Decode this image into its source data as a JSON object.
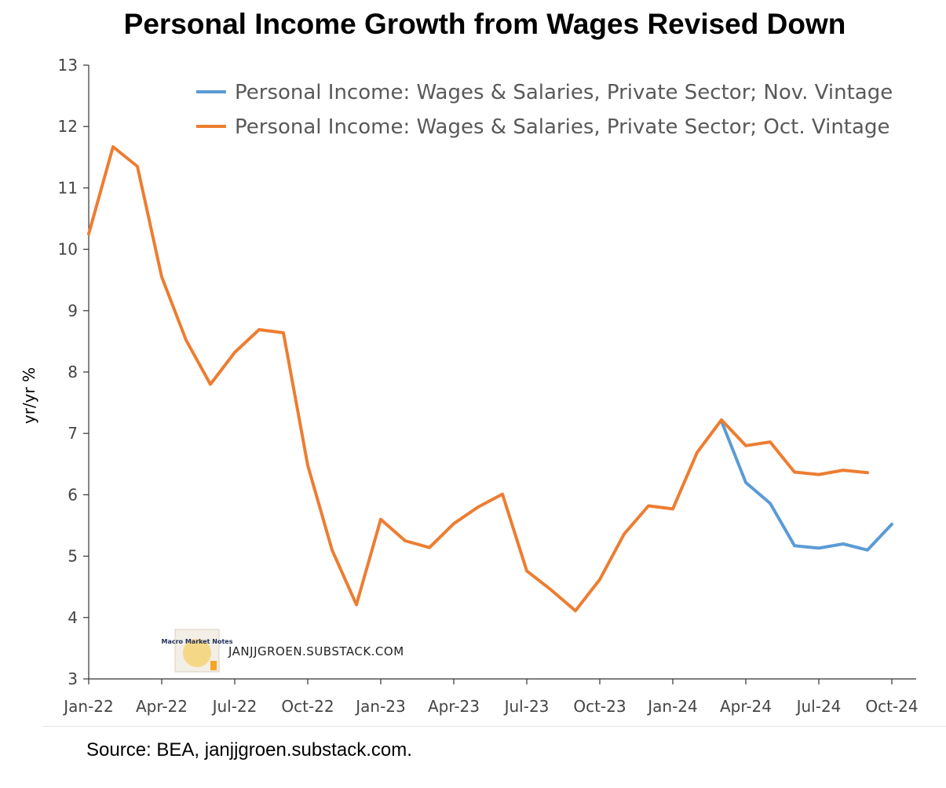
{
  "chart_data": {
    "type": "line",
    "title": "Personal Income Growth from Wages Revised Down",
    "ylabel": "yr/yr %",
    "xlabel": "",
    "ylim": [
      3,
      13
    ],
    "yticks": [
      3,
      4,
      5,
      6,
      7,
      8,
      9,
      10,
      11,
      12,
      13
    ],
    "xlim": [
      "2022-01",
      "2024-10"
    ],
    "xtick_labels": [
      "Jan-22",
      "Apr-22",
      "Jul-22",
      "Oct-22",
      "Jan-23",
      "Apr-23",
      "Jul-23",
      "Oct-23",
      "Jan-24",
      "Apr-24",
      "Jul-24",
      "Oct-24"
    ],
    "legend_position": "top-right",
    "grid": false,
    "series": [
      {
        "name": "Personal Income: Wages & Salaries, Private Sector; Nov. Vintage",
        "color": "#5b9bd5",
        "x": [
          "2024-03",
          "2024-04",
          "2024-05",
          "2024-06",
          "2024-07",
          "2024-08",
          "2024-09",
          "2024-10"
        ],
        "values": [
          7.2,
          6.2,
          5.86,
          5.17,
          5.13,
          5.2,
          5.1,
          5.52
        ]
      },
      {
        "name": "Personal Income: Wages & Salaries, Private Sector; Oct. Vintage",
        "color": "#ed7d31",
        "x": [
          "2022-01",
          "2022-02",
          "2022-03",
          "2022-04",
          "2022-05",
          "2022-06",
          "2022-07",
          "2022-08",
          "2022-09",
          "2022-10",
          "2022-11",
          "2022-12",
          "2023-01",
          "2023-02",
          "2023-03",
          "2023-04",
          "2023-05",
          "2023-06",
          "2023-07",
          "2023-08",
          "2023-09",
          "2023-10",
          "2023-11",
          "2023-12",
          "2024-01",
          "2024-02",
          "2024-03",
          "2024-04",
          "2024-05",
          "2024-06",
          "2024-07",
          "2024-08",
          "2024-09"
        ],
        "values": [
          10.25,
          11.67,
          11.35,
          9.55,
          8.52,
          7.8,
          8.32,
          8.69,
          8.64,
          6.48,
          5.1,
          4.21,
          5.6,
          5.25,
          5.14,
          5.53,
          5.8,
          6.01,
          4.76,
          4.45,
          4.11,
          4.62,
          5.36,
          5.82,
          5.77,
          6.69,
          7.22,
          6.8,
          6.86,
          6.37,
          6.33,
          6.4,
          6.36
        ]
      }
    ]
  },
  "watermark": {
    "logo_text": "Macro Market Notes",
    "text": "JANJJGROEN.SUBSTACK.COM"
  },
  "source": "Source: BEA, janjjgroen.substack.com."
}
